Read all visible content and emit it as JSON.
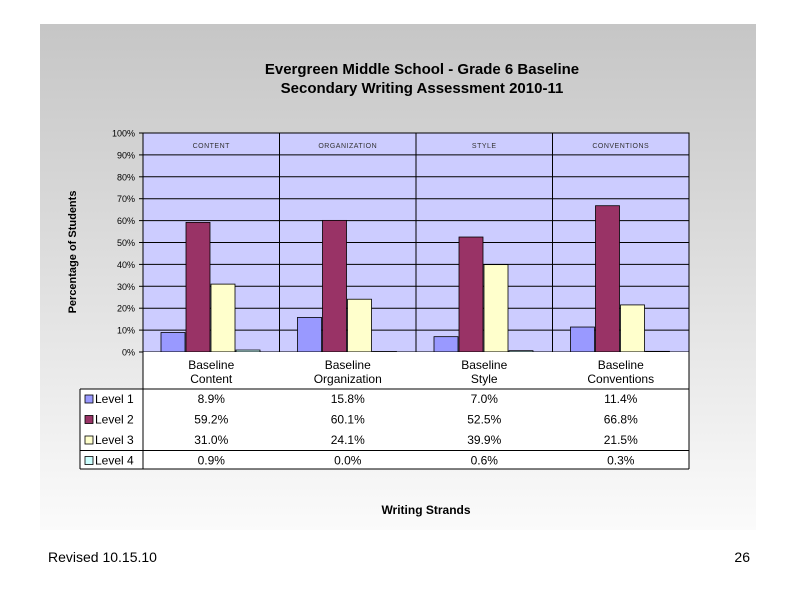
{
  "chart_data": {
    "type": "bar",
    "title": "Evergreen Middle School - Grade 6 Baseline",
    "subtitle": "Secondary Writing Assessment 2010-11",
    "xlabel": "Writing Strands",
    "ylabel": "Percentage of Students",
    "ylim": [
      0,
      100
    ],
    "y_ticks": [
      "0%",
      "10%",
      "20%",
      "30%",
      "40%",
      "50%",
      "60%",
      "70%",
      "80%",
      "90%",
      "100%"
    ],
    "categories": [
      {
        "line1": "Baseline",
        "line2": "Content"
      },
      {
        "line1": "Baseline",
        "line2": "Organization"
      },
      {
        "line1": "Baseline",
        "line2": "Style"
      },
      {
        "line1": "Baseline",
        "line2": "Conventions"
      }
    ],
    "category_headers": [
      "CONTENT",
      "ORGANIZATION",
      "STYLE",
      "CONVENTIONS"
    ],
    "series": [
      {
        "name": "Level 1",
        "color": "#9999ff",
        "values": [
          8.9,
          15.8,
          7.0,
          11.4
        ],
        "labels": [
          "8.9%",
          "15.8%",
          "7.0%",
          "11.4%"
        ]
      },
      {
        "name": "Level 2",
        "color": "#993366",
        "values": [
          59.2,
          60.1,
          52.5,
          66.8
        ],
        "labels": [
          "59.2%",
          "60.1%",
          "52.5%",
          "66.8%"
        ]
      },
      {
        "name": "Level 3",
        "color": "#ffffcc",
        "values": [
          31.0,
          24.1,
          39.9,
          21.5
        ],
        "labels": [
          "31.0%",
          "24.1%",
          "39.9%",
          "21.5%"
        ]
      },
      {
        "name": "Level 4",
        "color": "#ccffff",
        "values": [
          0.9,
          0.0,
          0.6,
          0.3
        ],
        "labels": [
          "0.9%",
          "0.0%",
          "0.6%",
          "0.3%"
        ]
      }
    ],
    "plot_background": "#ccccff",
    "grid": true,
    "legend": "data-table"
  },
  "footer": {
    "revised": "Revised  10.15.10",
    "page_number": "26"
  }
}
